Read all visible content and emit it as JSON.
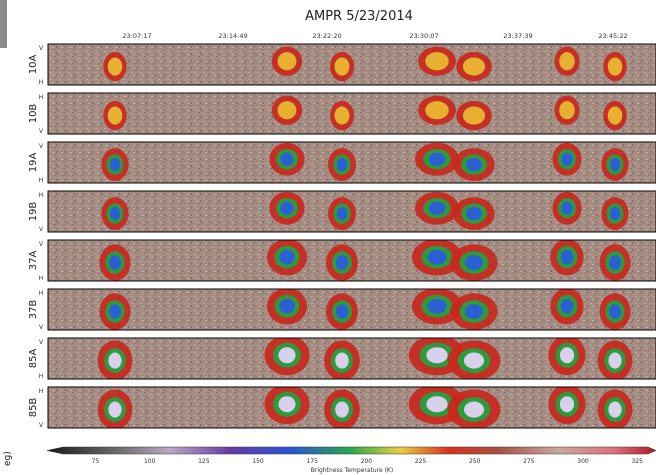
{
  "chart_data": {
    "type": "heatmap",
    "title": "AMPR 5/23/2014",
    "time_ticks": [
      "23:07:17",
      "23:14:49",
      "23:22:20",
      "23:30:07",
      "23:37:39",
      "23:45:22"
    ],
    "channels": [
      {
        "label": "10A",
        "top_label": "V",
        "bottom_label": "H"
      },
      {
        "label": "10B",
        "top_label": "H",
        "bottom_label": "V"
      },
      {
        "label": "19A",
        "top_label": "V",
        "bottom_label": "H"
      },
      {
        "label": "19B",
        "top_label": "H",
        "bottom_label": "V"
      },
      {
        "label": "37A",
        "top_label": "V",
        "bottom_label": "H"
      },
      {
        "label": "37B",
        "top_label": "H",
        "bottom_label": "V"
      },
      {
        "label": "85A",
        "top_label": "V",
        "bottom_label": "H"
      },
      {
        "label": "85B",
        "top_label": "H",
        "bottom_label": "V"
      }
    ],
    "colorbar": {
      "label": "Brightness Temperature (K)",
      "ticks": [
        75,
        100,
        125,
        150,
        175,
        200,
        225,
        250,
        275,
        300,
        325
      ],
      "range": [
        60,
        330
      ]
    },
    "partial_label": "eg)"
  }
}
